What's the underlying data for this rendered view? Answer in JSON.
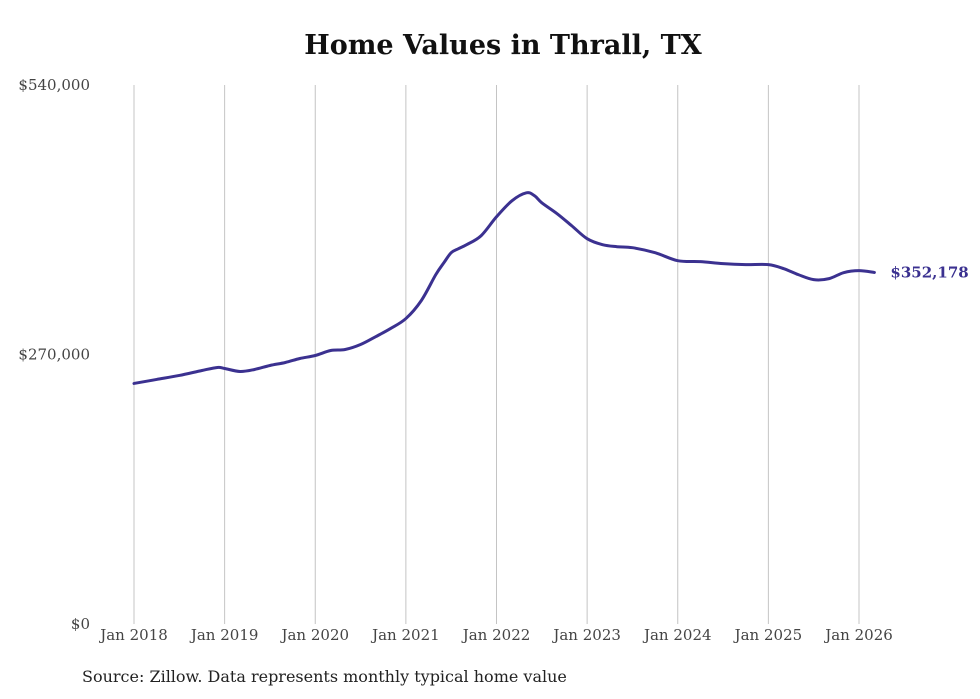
{
  "chart_data": {
    "type": "line",
    "title": "Home Values in Thrall, TX",
    "xlabel": "",
    "ylabel": "",
    "ylim": [
      0,
      540000
    ],
    "yticks": [
      0,
      270000,
      540000
    ],
    "ytick_labels": [
      "$0",
      "$270,000",
      "$540,000"
    ],
    "x_ticks": [
      {
        "year": 2018,
        "label": "Jan 2018"
      },
      {
        "year": 2019,
        "label": "Jan 2019"
      },
      {
        "year": 2020,
        "label": "Jan 2020"
      },
      {
        "year": 2021,
        "label": "Jan 2021"
      },
      {
        "year": 2022,
        "label": "Jan 2022"
      },
      {
        "year": 2023,
        "label": "Jan 2023"
      },
      {
        "year": 2024,
        "label": "Jan 2024"
      },
      {
        "year": 2025,
        "label": "Jan 2025"
      },
      {
        "year": 2026,
        "label": "Jan 2026"
      }
    ],
    "xlim": [
      2018,
      2026.17
    ],
    "grid": "vertical",
    "series": [
      {
        "name": "Typical home value",
        "color": "#3b3190",
        "end_label": "$352,178",
        "x": [
          2018.0,
          2018.25,
          2018.5,
          2018.75,
          2018.92,
          2019.0,
          2019.17,
          2019.33,
          2019.5,
          2019.67,
          2019.83,
          2020.0,
          2020.17,
          2020.33,
          2020.5,
          2020.67,
          2020.83,
          2021.0,
          2021.17,
          2021.33,
          2021.42,
          2021.5,
          2021.58,
          2021.67,
          2021.83,
          2022.0,
          2022.17,
          2022.33,
          2022.42,
          2022.5,
          2022.67,
          2022.83,
          2023.0,
          2023.17,
          2023.33,
          2023.5,
          2023.75,
          2024.0,
          2024.25,
          2024.5,
          2024.75,
          2025.0,
          2025.17,
          2025.33,
          2025.5,
          2025.67,
          2025.83,
          2026.0,
          2026.17
        ],
        "y": [
          241000,
          245000,
          249000,
          254000,
          257000,
          256000,
          253000,
          255000,
          259000,
          262000,
          266000,
          269000,
          274000,
          275000,
          280000,
          288000,
          296000,
          306000,
          324000,
          350000,
          362000,
          372000,
          376000,
          380000,
          389000,
          408000,
          424000,
          432000,
          429000,
          422000,
          411000,
          399000,
          386000,
          380000,
          378000,
          377000,
          372000,
          364000,
          363000,
          361000,
          360000,
          360000,
          356000,
          350000,
          345000,
          346000,
          352000,
          354000,
          352178
        ]
      }
    ]
  },
  "source": "Source: Zillow. Data represents monthly typical home value"
}
